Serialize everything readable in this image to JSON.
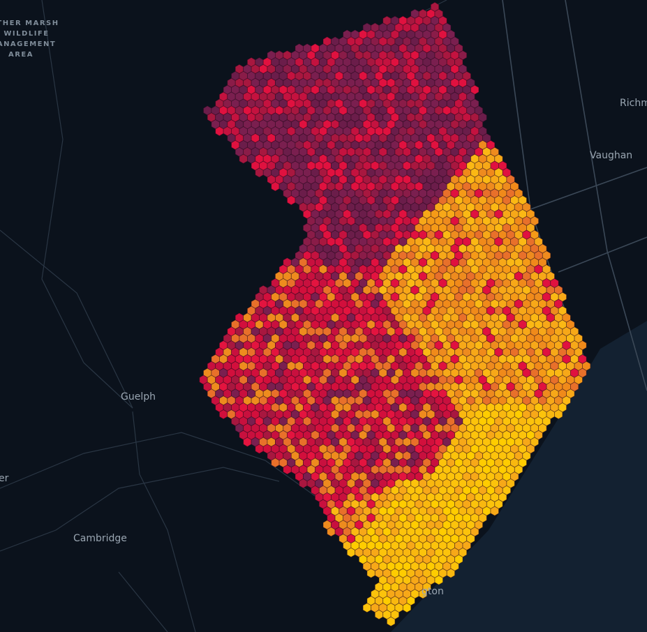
{
  "map": {
    "area_label": [
      "THER MARSH",
      "WILDLIFE",
      "ANAGEMENT",
      "AREA"
    ],
    "places": [
      "Richm",
      "Vaughan",
      "Guelph",
      "Cambridge",
      "er",
      "gton"
    ]
  }
}
